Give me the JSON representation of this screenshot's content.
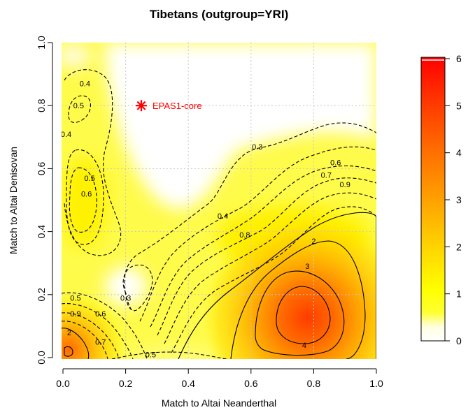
{
  "chart_data": {
    "type": "heatmap",
    "title": "Tibetans (outgroup=YRI)",
    "xlabel": "Match to Altai Neanderthal",
    "ylabel": "Match to Altai Denisovan",
    "xlim": [
      0,
      1
    ],
    "ylim": [
      0,
      1
    ],
    "x_ticks": [
      "0.0",
      "0.2",
      "0.4",
      "0.6",
      "0.8",
      "1.0"
    ],
    "y_ticks": [
      "0.0",
      "0.2",
      "0.4",
      "0.6",
      "0.8",
      "1.0"
    ],
    "grid": true,
    "colorbar": {
      "min": 0,
      "max": 6,
      "ticks": [
        "0",
        "1",
        "2",
        "3",
        "4",
        "5",
        "6"
      ],
      "colors": [
        "#ffffff",
        "#ffff00",
        "#ffd000",
        "#ff9a00",
        "#ff6400",
        "#ff2a00",
        "#ff0000"
      ]
    },
    "density_peaks": [
      {
        "x": 0.76,
        "y": 0.11,
        "value": 4.3
      },
      {
        "x": 0.02,
        "y": 0.03,
        "value": 2.2
      },
      {
        "x": 0.08,
        "y": 0.49,
        "value": 0.65
      },
      {
        "x": 0.06,
        "y": 0.8,
        "value": 0.52
      }
    ],
    "contour_labels": [
      {
        "text": "0.4",
        "x": 0.07,
        "y": 0.87
      },
      {
        "text": "0.5",
        "x": 0.05,
        "y": 0.8
      },
      {
        "text": "0.4",
        "x": 0.01,
        "y": 0.71
      },
      {
        "text": "0.5",
        "x": 0.085,
        "y": 0.57
      },
      {
        "text": "0.6",
        "x": 0.075,
        "y": 0.52
      },
      {
        "text": "0.3",
        "x": 0.62,
        "y": 0.67
      },
      {
        "text": "0.6",
        "x": 0.87,
        "y": 0.62
      },
      {
        "text": "0.7",
        "x": 0.84,
        "y": 0.58
      },
      {
        "text": "0.9",
        "x": 0.9,
        "y": 0.55
      },
      {
        "text": "0.4",
        "x": 0.51,
        "y": 0.45
      },
      {
        "text": "0.8",
        "x": 0.58,
        "y": 0.39
      },
      {
        "text": "2",
        "x": 0.8,
        "y": 0.37
      },
      {
        "text": "3",
        "x": 0.78,
        "y": 0.29
      },
      {
        "text": "4",
        "x": 0.77,
        "y": 0.04
      },
      {
        "text": "0.3",
        "x": 0.2,
        "y": 0.19
      },
      {
        "text": "0.5",
        "x": 0.04,
        "y": 0.19
      },
      {
        "text": "0.6",
        "x": 0.12,
        "y": 0.14
      },
      {
        "text": "0.9",
        "x": 0.04,
        "y": 0.14
      },
      {
        "text": "2",
        "x": 0.02,
        "y": 0.08
      },
      {
        "text": "0.7",
        "x": 0.12,
        "y": 0.05
      },
      {
        "text": "0.5",
        "x": 0.28,
        "y": 0.01
      }
    ],
    "annotations": [
      {
        "label": "EPAS1-core",
        "x": 0.25,
        "y": 0.8,
        "marker": "asterisk",
        "color": "#ff0000"
      }
    ]
  }
}
